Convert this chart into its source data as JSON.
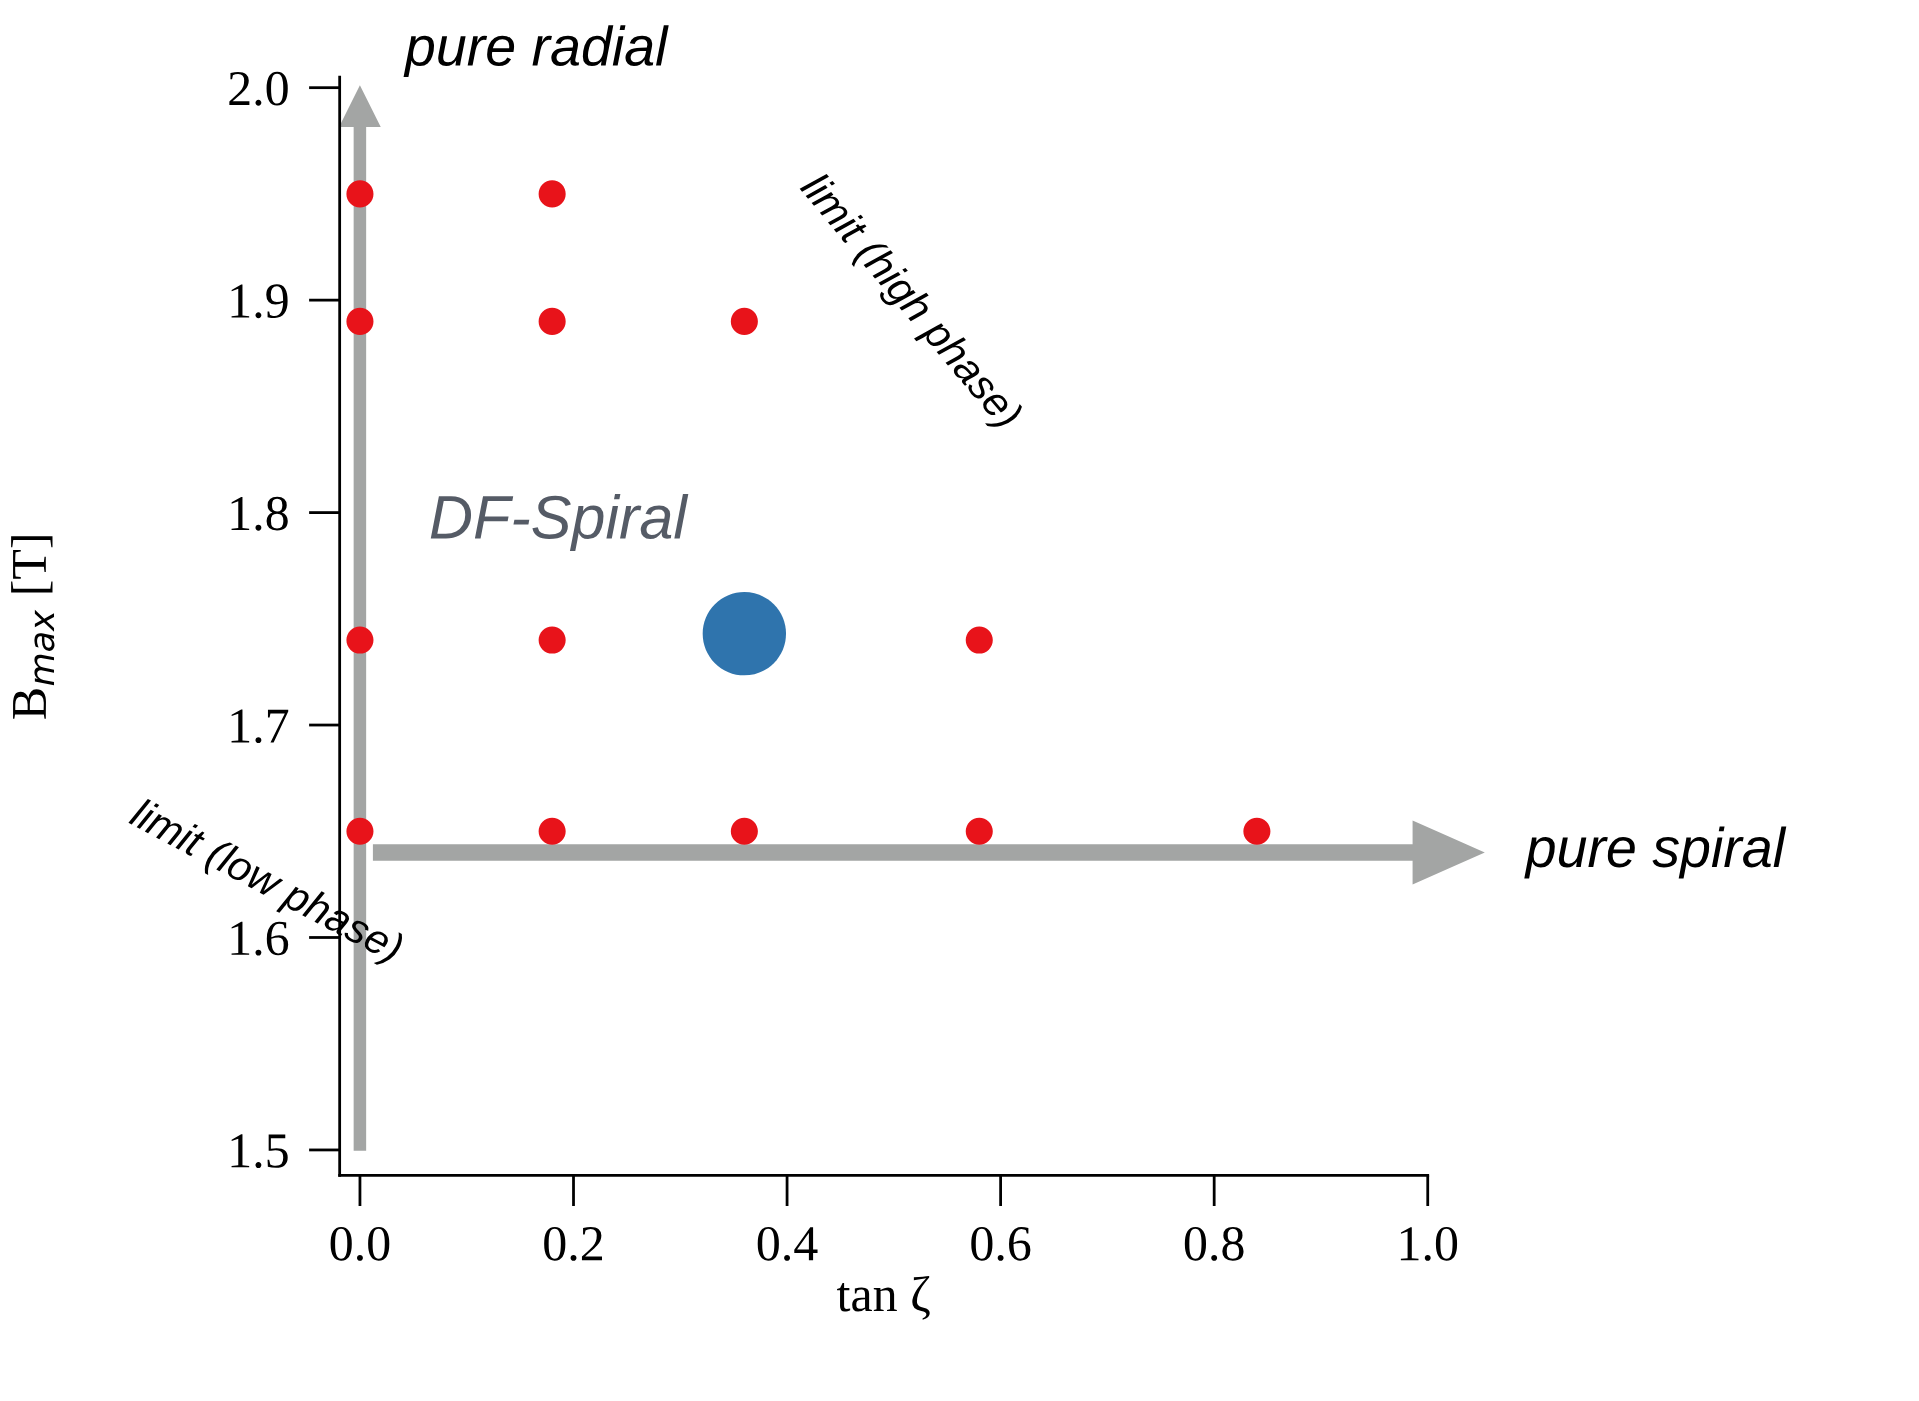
{
  "chart_data": {
    "type": "scatter",
    "xlabel": "tan ζ",
    "ylabel": "B$_{max}$ [T]",
    "xlim": [
      -0.019,
      1.0
    ],
    "ylim": [
      1.488,
      2.005
    ],
    "xticks": [
      {
        "value": 0,
        "label": "0.0"
      },
      0.2,
      0.4,
      0.6,
      0.8,
      {
        "value": 1,
        "label": "1.0"
      }
    ],
    "yticks": [
      1.5,
      1.6,
      1.7,
      1.8,
      1.9,
      {
        "value": 2,
        "label": "2.0"
      }
    ],
    "grid": false,
    "legend": false,
    "marker": "circle",
    "series": [
      {
        "color": "#e8131a",
        "x": [
          0,
          0.18,
          0,
          0.18,
          0.36,
          0,
          0.18,
          0.58,
          0,
          0.18,
          0.36,
          0.58,
          0.84
        ],
        "values": [
          1.95,
          1.95,
          1.89,
          1.89,
          1.89,
          1.74,
          1.74,
          1.74,
          1.65,
          1.65,
          1.65,
          1.65,
          1.65
        ]
      },
      {
        "color": "#2f74ad",
        "x": [
          0.36
        ],
        "values": [
          1.743
        ]
      }
    ],
    "annotations": [
      "pure radial",
      "pure spiral",
      "DF-Spiral",
      "limit (high phase)",
      "limit (low phase)"
    ]
  }
}
